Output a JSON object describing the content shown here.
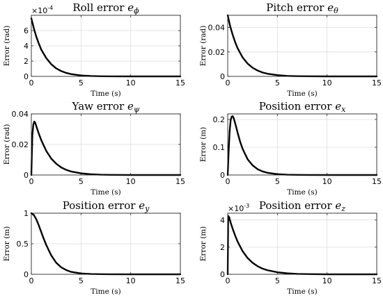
{
  "chart_data": [
    {
      "type": "line",
      "title": "Roll error ",
      "title_sym": "e",
      "title_sub": "ϕ",
      "xlabel": "Time (s)",
      "ylabel": "Error (rad)",
      "xlim": [
        0,
        15
      ],
      "ylim": [
        0,
        8
      ],
      "xticks": [
        "0",
        "5",
        "10",
        "15"
      ],
      "xtick_values": [
        0,
        5,
        10,
        15
      ],
      "yticks": [
        "0",
        "2",
        "4",
        "6"
      ],
      "ytick_values": [
        0,
        2,
        4,
        6
      ],
      "multiplier": "×10",
      "multiplier_exp": "-4",
      "grid": true,
      "x": [
        0,
        0.25,
        0.5,
        0.75,
        1,
        1.5,
        2,
        2.5,
        3,
        3.5,
        4,
        5,
        6,
        7,
        8,
        10,
        12,
        15
      ],
      "y": [
        7.6,
        6.3,
        5.2,
        4.3,
        3.5,
        2.4,
        1.6,
        1.05,
        0.7,
        0.46,
        0.3,
        0.12,
        0.05,
        0.02,
        0.01,
        0,
        0,
        0
      ]
    },
    {
      "type": "line",
      "title": "Pitch error ",
      "title_sym": "e",
      "title_sub": "θ",
      "xlabel": "Time (s)",
      "ylabel": "Error (rad)",
      "xlim": [
        0,
        15
      ],
      "ylim": [
        0,
        0.05
      ],
      "xticks": [
        "0",
        "5",
        "10",
        "15"
      ],
      "xtick_values": [
        0,
        5,
        10,
        15
      ],
      "yticks": [
        "0",
        "0.02",
        "0.04"
      ],
      "ytick_values": [
        0,
        0.02,
        0.04
      ],
      "multiplier": "",
      "multiplier_exp": "",
      "grid": true,
      "x": [
        0,
        0.25,
        0.5,
        0.75,
        1,
        1.5,
        2,
        2.5,
        3,
        3.5,
        4,
        5,
        6,
        7,
        8,
        10,
        12,
        15
      ],
      "y": [
        0.05,
        0.041,
        0.034,
        0.028,
        0.023,
        0.0155,
        0.0105,
        0.0071,
        0.0048,
        0.0032,
        0.0022,
        0.001,
        0.0004,
        0.0002,
        0.0001,
        0,
        0,
        0
      ]
    },
    {
      "type": "line",
      "title": "Yaw error ",
      "title_sym": "e",
      "title_sub": "ψ",
      "xlabel": "Time (s)",
      "ylabel": "Error (rad)",
      "xlim": [
        0,
        15
      ],
      "ylim": [
        0,
        0.04
      ],
      "xticks": [
        "0",
        "5",
        "10",
        "15"
      ],
      "xtick_values": [
        0,
        5,
        10,
        15
      ],
      "yticks": [
        "0",
        "0.02",
        "0.04"
      ],
      "ytick_values": [
        0,
        0.02,
        0.04
      ],
      "multiplier": "",
      "multiplier_exp": "",
      "grid": true,
      "x": [
        0,
        0.1,
        0.2,
        0.3,
        0.4,
        0.6,
        0.8,
        1,
        1.5,
        2,
        2.5,
        3,
        3.5,
        4,
        5,
        6,
        7,
        8,
        10,
        12,
        15
      ],
      "y": [
        0,
        0.026,
        0.033,
        0.035,
        0.034,
        0.03,
        0.0262,
        0.0228,
        0.0158,
        0.0108,
        0.0074,
        0.005,
        0.0034,
        0.0023,
        0.0011,
        0.0005,
        0.0002,
        0.0001,
        0,
        0,
        0
      ]
    },
    {
      "type": "line",
      "title": "Position error ",
      "title_sym": "e",
      "title_sub": "x",
      "xlabel": "Time (s)",
      "ylabel": "Error (m)",
      "xlim": [
        0,
        15
      ],
      "ylim": [
        0,
        0.22
      ],
      "xticks": [
        "0",
        "5",
        "10",
        "15"
      ],
      "xtick_values": [
        0,
        5,
        10,
        15
      ],
      "yticks": [
        "0",
        "0.1",
        "0.2"
      ],
      "ytick_values": [
        0,
        0.1,
        0.2
      ],
      "multiplier": "",
      "multiplier_exp": "",
      "grid": true,
      "x": [
        0,
        0.1,
        0.2,
        0.3,
        0.4,
        0.5,
        0.6,
        0.8,
        1,
        1.25,
        1.5,
        2,
        2.5,
        3,
        3.5,
        4,
        5,
        6,
        7,
        8,
        10,
        12,
        15
      ],
      "y": [
        0,
        0.09,
        0.16,
        0.198,
        0.21,
        0.212,
        0.205,
        0.18,
        0.152,
        0.12,
        0.094,
        0.057,
        0.035,
        0.021,
        0.013,
        0.008,
        0.003,
        0.001,
        0.0004,
        0.0002,
        0,
        0,
        0
      ]
    },
    {
      "type": "line",
      "title": "Position error ",
      "title_sym": "e",
      "title_sub": "y",
      "xlabel": "Time (s)",
      "ylabel": "Error (m)",
      "xlim": [
        0,
        15
      ],
      "ylim": [
        0,
        1
      ],
      "xticks": [
        "0",
        "5",
        "10",
        "15"
      ],
      "xtick_values": [
        0,
        5,
        10,
        15
      ],
      "yticks": [
        "0",
        "0.5",
        "1"
      ],
      "ytick_values": [
        0,
        0.5,
        1
      ],
      "multiplier": "",
      "multiplier_exp": "",
      "grid": true,
      "x": [
        0,
        0.25,
        0.5,
        0.75,
        1,
        1.25,
        1.5,
        2,
        2.5,
        3,
        3.5,
        4,
        5,
        6,
        7,
        8,
        10,
        12,
        15
      ],
      "y": [
        1,
        0.97,
        0.9,
        0.8,
        0.69,
        0.58,
        0.48,
        0.31,
        0.19,
        0.115,
        0.07,
        0.04,
        0.014,
        0.005,
        0.002,
        0.001,
        0,
        0,
        0
      ]
    },
    {
      "type": "line",
      "title": "Position error ",
      "title_sym": "e",
      "title_sub": "z",
      "xlabel": "Time (s)",
      "ylabel": "Error (m)",
      "xlim": [
        0,
        15
      ],
      "ylim": [
        0,
        4.5
      ],
      "xticks": [
        "0",
        "5",
        "10",
        "15"
      ],
      "xtick_values": [
        0,
        5,
        10,
        15
      ],
      "yticks": [
        "0",
        "2",
        "4"
      ],
      "ytick_values": [
        0,
        2,
        4
      ],
      "multiplier": "×10",
      "multiplier_exp": "-3",
      "grid": true,
      "x": [
        0,
        0.05,
        0.15,
        0.3,
        0.5,
        0.75,
        1,
        1.5,
        2,
        2.5,
        3,
        3.5,
        4,
        5,
        6,
        7,
        8,
        10,
        12,
        15
      ],
      "y": [
        0,
        4.3,
        4.2,
        3.8,
        3.35,
        2.85,
        2.4,
        1.7,
        1.2,
        0.85,
        0.6,
        0.42,
        0.3,
        0.15,
        0.07,
        0.03,
        0.015,
        0,
        0,
        0
      ]
    }
  ]
}
